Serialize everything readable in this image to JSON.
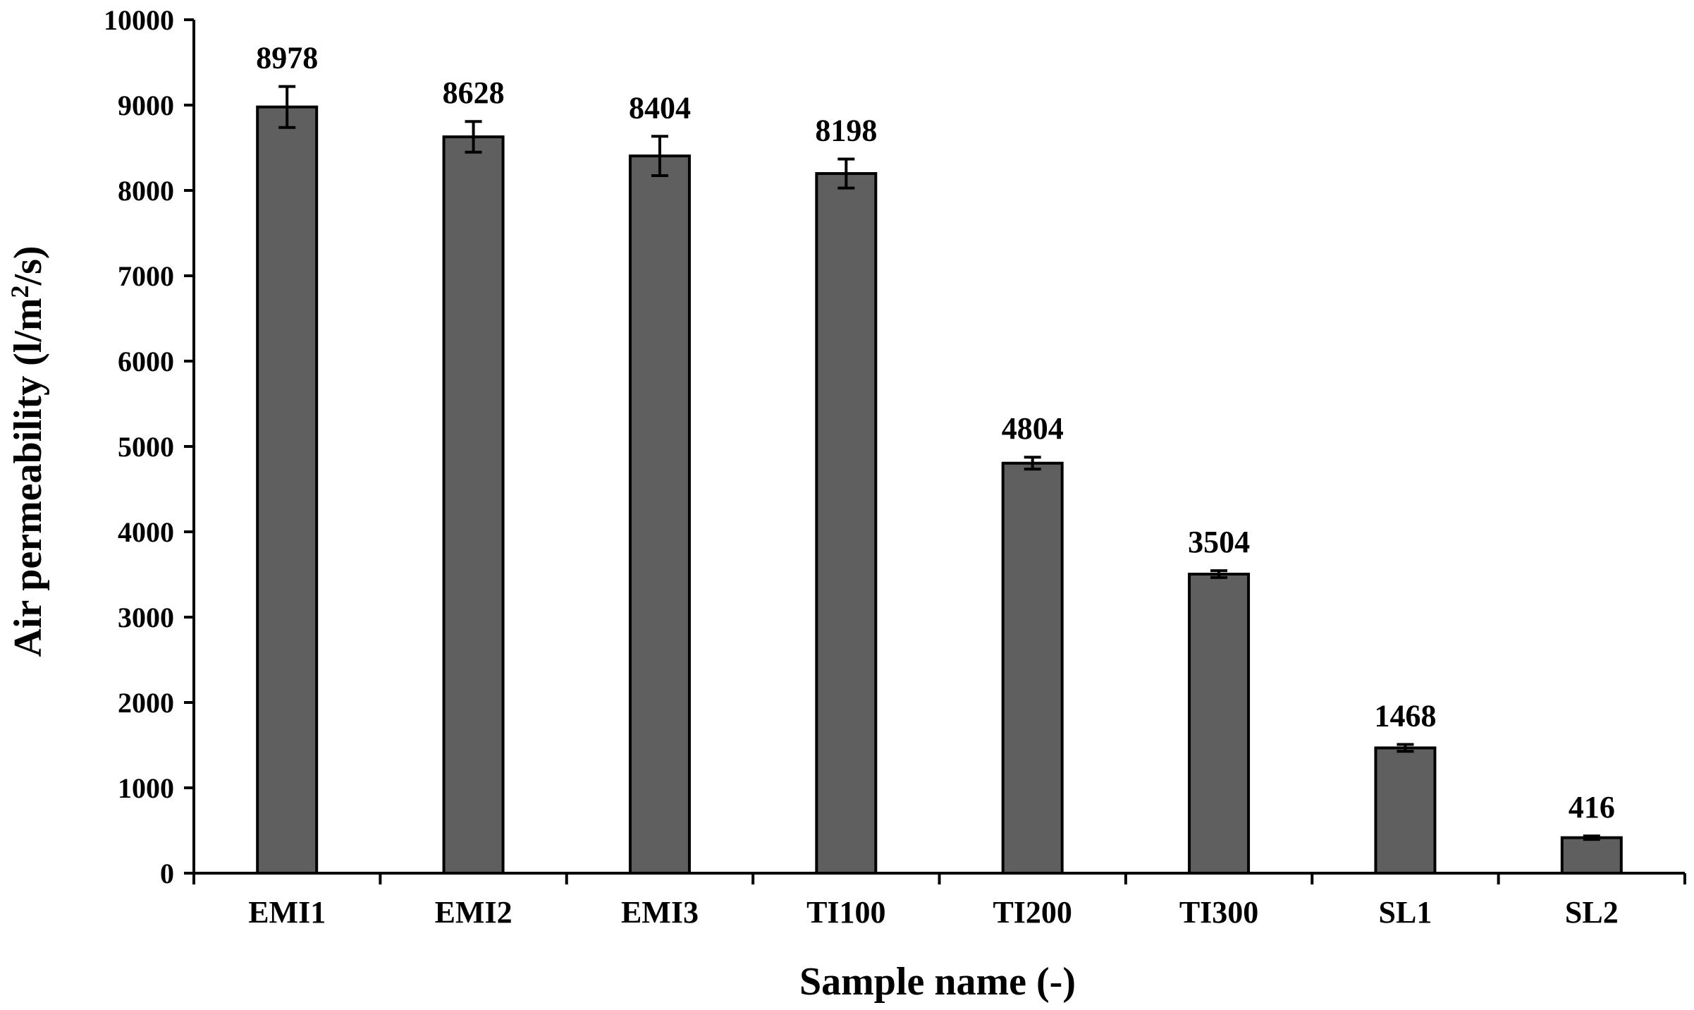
{
  "chart_data": {
    "type": "bar",
    "title": "",
    "xlabel": "Sample name (-)",
    "ylabel": "Air permeability (l/m²/s)",
    "ylabel_parts": {
      "pre": "Air permeability (l/m",
      "sup": "2",
      "post": "/s)"
    },
    "ylim": [
      0,
      10000
    ],
    "yticks": [
      0,
      1000,
      2000,
      3000,
      4000,
      5000,
      6000,
      7000,
      8000,
      9000,
      10000
    ],
    "ytick_labels": [
      "0",
      "1000",
      "2000",
      "3000",
      "4000",
      "5000",
      "6000",
      "7000",
      "8000",
      "9000",
      "10000"
    ],
    "categories": [
      "EMI1",
      "EMI2",
      "EMI3",
      "TI100",
      "TI200",
      "TI300",
      "SL1",
      "SL2"
    ],
    "values": [
      8978,
      8628,
      8404,
      8198,
      4804,
      3504,
      1468,
      416
    ],
    "value_labels": [
      "8978",
      "8628",
      "8404",
      "8198",
      "4804",
      "3504",
      "1468",
      "416"
    ],
    "errors": [
      240,
      180,
      230,
      170,
      70,
      40,
      40,
      20
    ],
    "grid": false,
    "legend": "none",
    "colors": {
      "bar_fill": "#5f5f5f",
      "bar_stroke": "#000000",
      "axis": "#000000"
    }
  }
}
